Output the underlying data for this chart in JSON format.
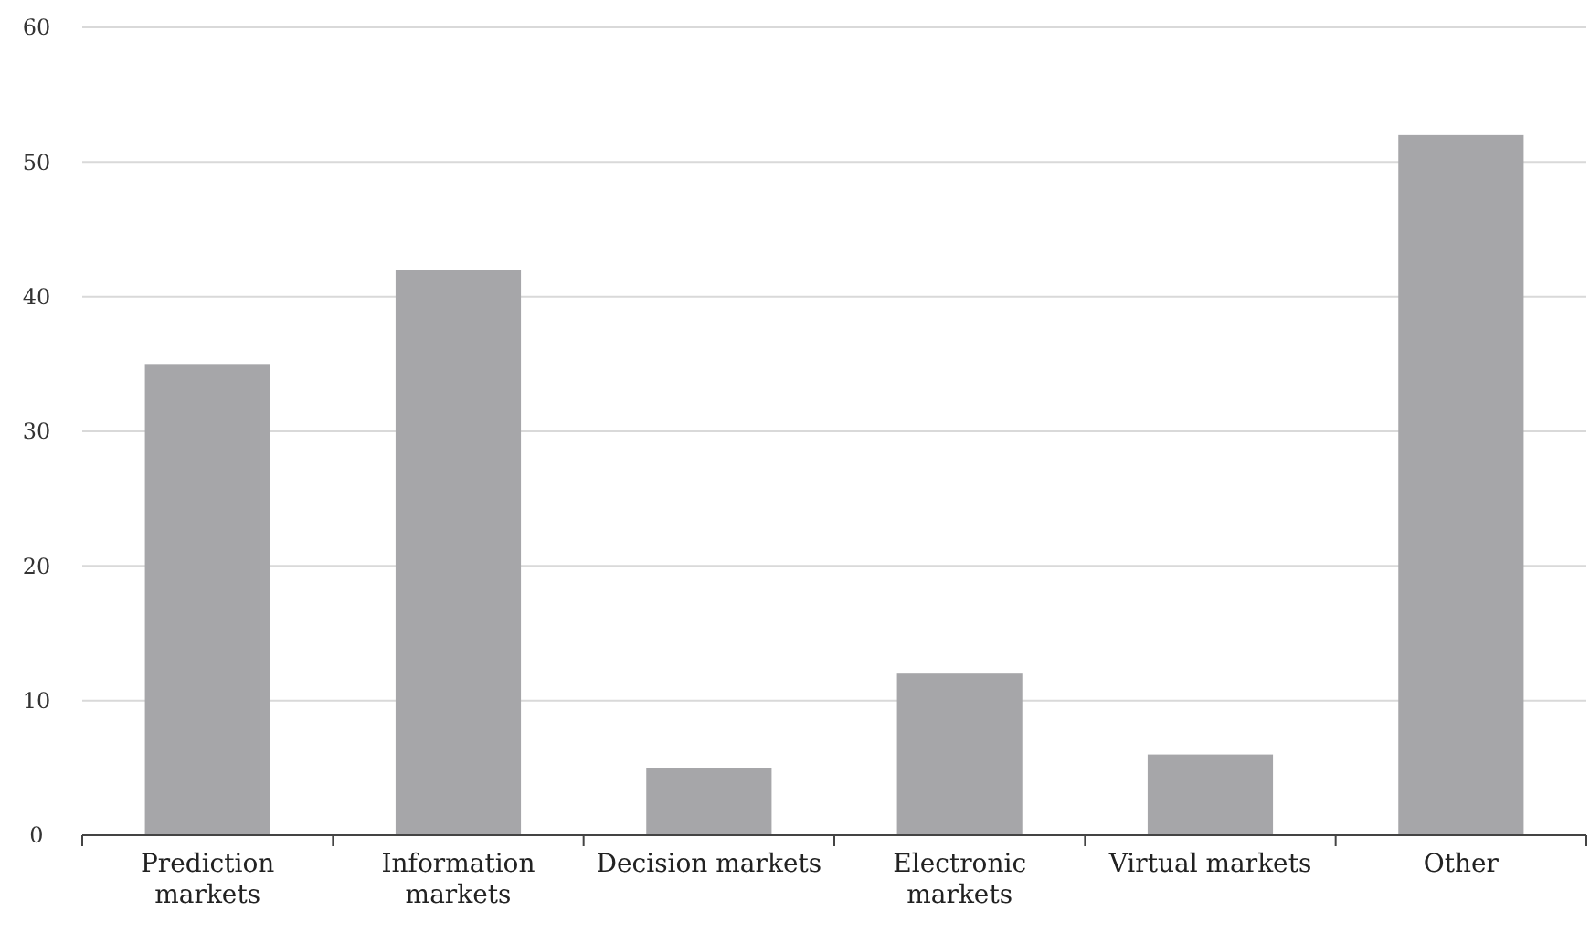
{
  "chart_data": {
    "type": "bar",
    "categories": [
      "Prediction markets",
      "Information markets",
      "Decision markets",
      "Electronic markets",
      "Virtual markets",
      "Other"
    ],
    "values": [
      35,
      42,
      5,
      12,
      6,
      52
    ],
    "color": "#a6a6a9",
    "ylim": [
      0,
      60
    ],
    "yticks": [
      0,
      10,
      20,
      30,
      40,
      50,
      60
    ],
    "grid": "y"
  }
}
